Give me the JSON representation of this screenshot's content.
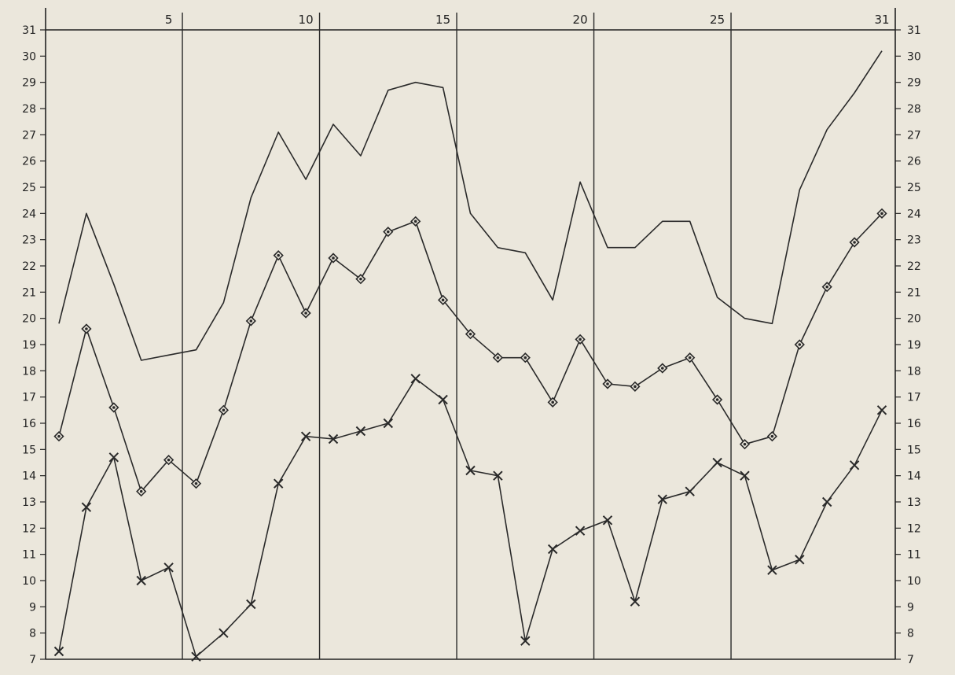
{
  "chart_data": {
    "type": "line",
    "title": "",
    "xlabel": "",
    "ylabel": "",
    "x": [
      1,
      2,
      3,
      4,
      5,
      6,
      7,
      8,
      9,
      10,
      11,
      12,
      13,
      14,
      15,
      16,
      17,
      18,
      19,
      20,
      21,
      22,
      23,
      24,
      25,
      26,
      27,
      28,
      29,
      30,
      31
    ],
    "xlim": [
      1,
      31
    ],
    "ylim": [
      7,
      31
    ],
    "x_tick_labels": [
      5,
      10,
      15,
      20,
      25,
      31
    ],
    "y_ticks": [
      7,
      8,
      9,
      10,
      11,
      12,
      13,
      14,
      15,
      16,
      17,
      18,
      19,
      20,
      21,
      22,
      23,
      24,
      25,
      26,
      27,
      28,
      29,
      30,
      31
    ],
    "vertical_gridlines_at": [
      5,
      10,
      15,
      20,
      25
    ],
    "grid": true,
    "series": [
      {
        "marker": "none",
        "color": "#2a2a2a",
        "values": [
          19.8,
          24.0,
          21.3,
          18.4,
          18.6,
          18.8,
          20.6,
          24.6,
          27.1,
          25.3,
          27.4,
          26.2,
          28.7,
          29.0,
          28.8,
          24.0,
          22.7,
          22.5,
          20.7,
          25.2,
          22.7,
          22.7,
          23.7,
          23.7,
          20.8,
          20.0,
          19.8,
          24.9,
          27.2,
          28.6,
          30.2
        ]
      },
      {
        "marker": "diamond",
        "color": "#2a2a2a",
        "values": [
          15.5,
          19.6,
          16.6,
          13.4,
          14.6,
          13.7,
          16.5,
          19.9,
          22.4,
          20.2,
          22.3,
          21.5,
          23.3,
          23.7,
          20.7,
          19.4,
          18.5,
          18.5,
          16.8,
          19.2,
          17.5,
          17.4,
          18.1,
          18.5,
          16.9,
          15.2,
          15.5,
          19.0,
          21.2,
          22.9,
          24.0
        ]
      },
      {
        "marker": "cross",
        "color": "#2a2a2a",
        "values": [
          7.3,
          12.8,
          14.7,
          10.0,
          10.5,
          7.1,
          8.0,
          9.1,
          13.7,
          15.5,
          15.4,
          15.7,
          16.0,
          17.7,
          16.9,
          14.2,
          14.0,
          7.7,
          11.2,
          11.9,
          12.3,
          9.2,
          13.1,
          13.4,
          14.5,
          14.0,
          10.4,
          10.8,
          13.0,
          14.4,
          16.5
        ]
      }
    ]
  }
}
